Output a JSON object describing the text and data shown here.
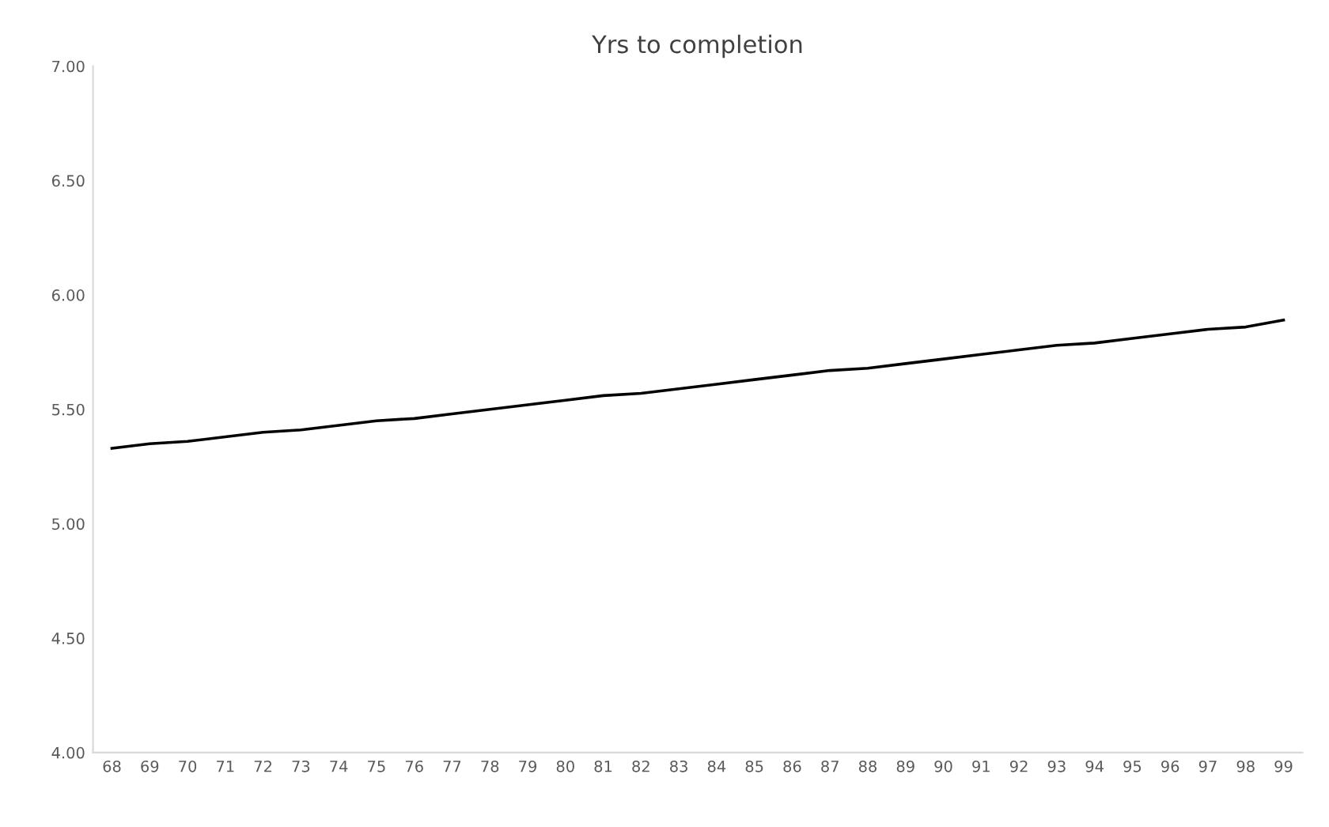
{
  "chart_data": {
    "type": "line",
    "title": "Yrs to completion",
    "categories": [
      "68",
      "69",
      "70",
      "71",
      "72",
      "73",
      "74",
      "75",
      "76",
      "77",
      "78",
      "79",
      "80",
      "81",
      "82",
      "83",
      "84",
      "85",
      "86",
      "87",
      "88",
      "89",
      "90",
      "91",
      "92",
      "93",
      "94",
      "95",
      "96",
      "97",
      "98",
      "99"
    ],
    "series": [
      {
        "color": "#000000",
        "values": [
          5.33,
          5.35,
          5.36,
          5.38,
          5.4,
          5.41,
          5.43,
          5.45,
          5.46,
          5.48,
          5.5,
          5.52,
          5.54,
          5.56,
          5.57,
          5.59,
          5.61,
          5.63,
          5.65,
          5.67,
          5.68,
          5.7,
          5.72,
          5.74,
          5.76,
          5.78,
          5.79,
          5.81,
          5.83,
          5.85,
          5.86,
          5.89
        ]
      }
    ],
    "ylim": [
      4,
      7
    ],
    "yticks": [
      {
        "value": 4,
        "label": "4.00"
      },
      {
        "value": 4.5,
        "label": "4.50"
      },
      {
        "value": 5,
        "label": "5.00"
      },
      {
        "value": 5.5,
        "label": "5.50"
      },
      {
        "value": 6,
        "label": "6.00"
      },
      {
        "value": 6.5,
        "label": "6.50"
      },
      {
        "value": 7,
        "label": "7.00"
      }
    ],
    "grid": false,
    "legend": false,
    "marker": "none",
    "line_style": "solid"
  }
}
